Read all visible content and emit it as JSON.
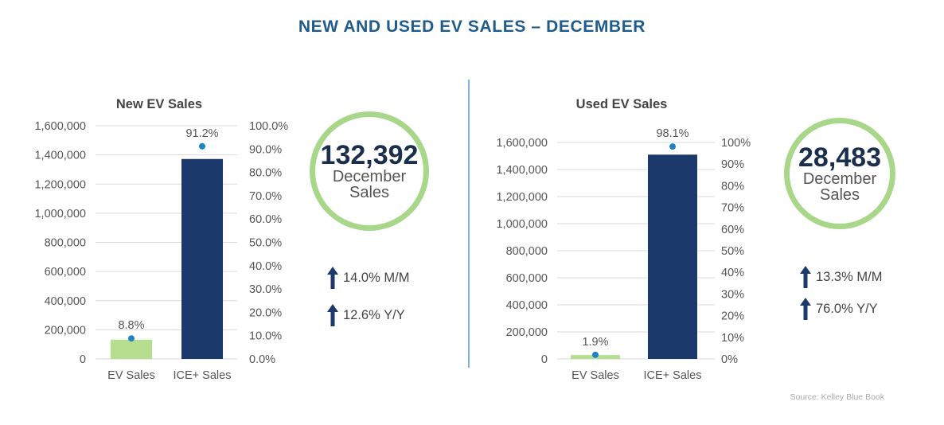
{
  "title": "NEW AND USED EV SALES – DECEMBER",
  "source": "Source: Kelley Blue Book",
  "colors": {
    "ev_bar": "#b5de8f",
    "ice_bar": "#1b3a6b",
    "marker": "#1f83c6",
    "ring": "#a9d789",
    "title": "#1f5c8c"
  },
  "icons": {
    "trend": "up-arrow-icon"
  },
  "panels": [
    {
      "title": "New EV Sales",
      "highlight": {
        "value": "132,392",
        "label_line1": "December",
        "label_line2": "Sales"
      },
      "stats": [
        {
          "text": "14.0% M/M"
        },
        {
          "text": "12.6% Y/Y"
        }
      ]
    },
    {
      "title": "Used EV Sales",
      "highlight": {
        "value": "28,483",
        "label_line1": "December",
        "label_line2": "Sales"
      },
      "stats": [
        {
          "text": "13.3% M/M"
        },
        {
          "text": "76.0% Y/Y"
        }
      ]
    }
  ],
  "chart_data": [
    {
      "type": "bar",
      "title": "New EV Sales",
      "categories": [
        "EV Sales",
        "ICE+ Sales"
      ],
      "values": [
        132392,
        1372000
      ],
      "ylim": [
        0,
        1600000
      ],
      "y_ticks": [
        "0",
        "200,000",
        "400,000",
        "600,000",
        "800,000",
        "1,000,000",
        "1,200,000",
        "1,400,000",
        "1,600,000"
      ],
      "y2lim": [
        0,
        100
      ],
      "y2_ticks": [
        "0.0%",
        "10.0%",
        "20.0%",
        "30.0%",
        "40.0%",
        "50.0%",
        "60.0%",
        "70.0%",
        "80.0%",
        "90.0%",
        "100.0%"
      ],
      "share_points": [
        8.8,
        91.2
      ],
      "share_labels": [
        "8.8%",
        "91.2%"
      ],
      "grid": true,
      "legend": "none"
    },
    {
      "type": "bar",
      "title": "Used EV Sales",
      "categories": [
        "EV Sales",
        "ICE+ Sales"
      ],
      "values": [
        28483,
        1510000
      ],
      "ylim": [
        0,
        1600000
      ],
      "y_ticks": [
        "0",
        "200,000",
        "400,000",
        "600,000",
        "800,000",
        "1,000,000",
        "1,200,000",
        "1,400,000",
        "1,600,000"
      ],
      "y2lim": [
        0,
        100
      ],
      "y2_ticks": [
        "0%",
        "10%",
        "20%",
        "30%",
        "40%",
        "50%",
        "60%",
        "70%",
        "80%",
        "90%",
        "100%"
      ],
      "share_points": [
        1.9,
        98.1
      ],
      "share_labels": [
        "1.9%",
        "98.1%"
      ],
      "grid": true,
      "legend": "none"
    }
  ]
}
